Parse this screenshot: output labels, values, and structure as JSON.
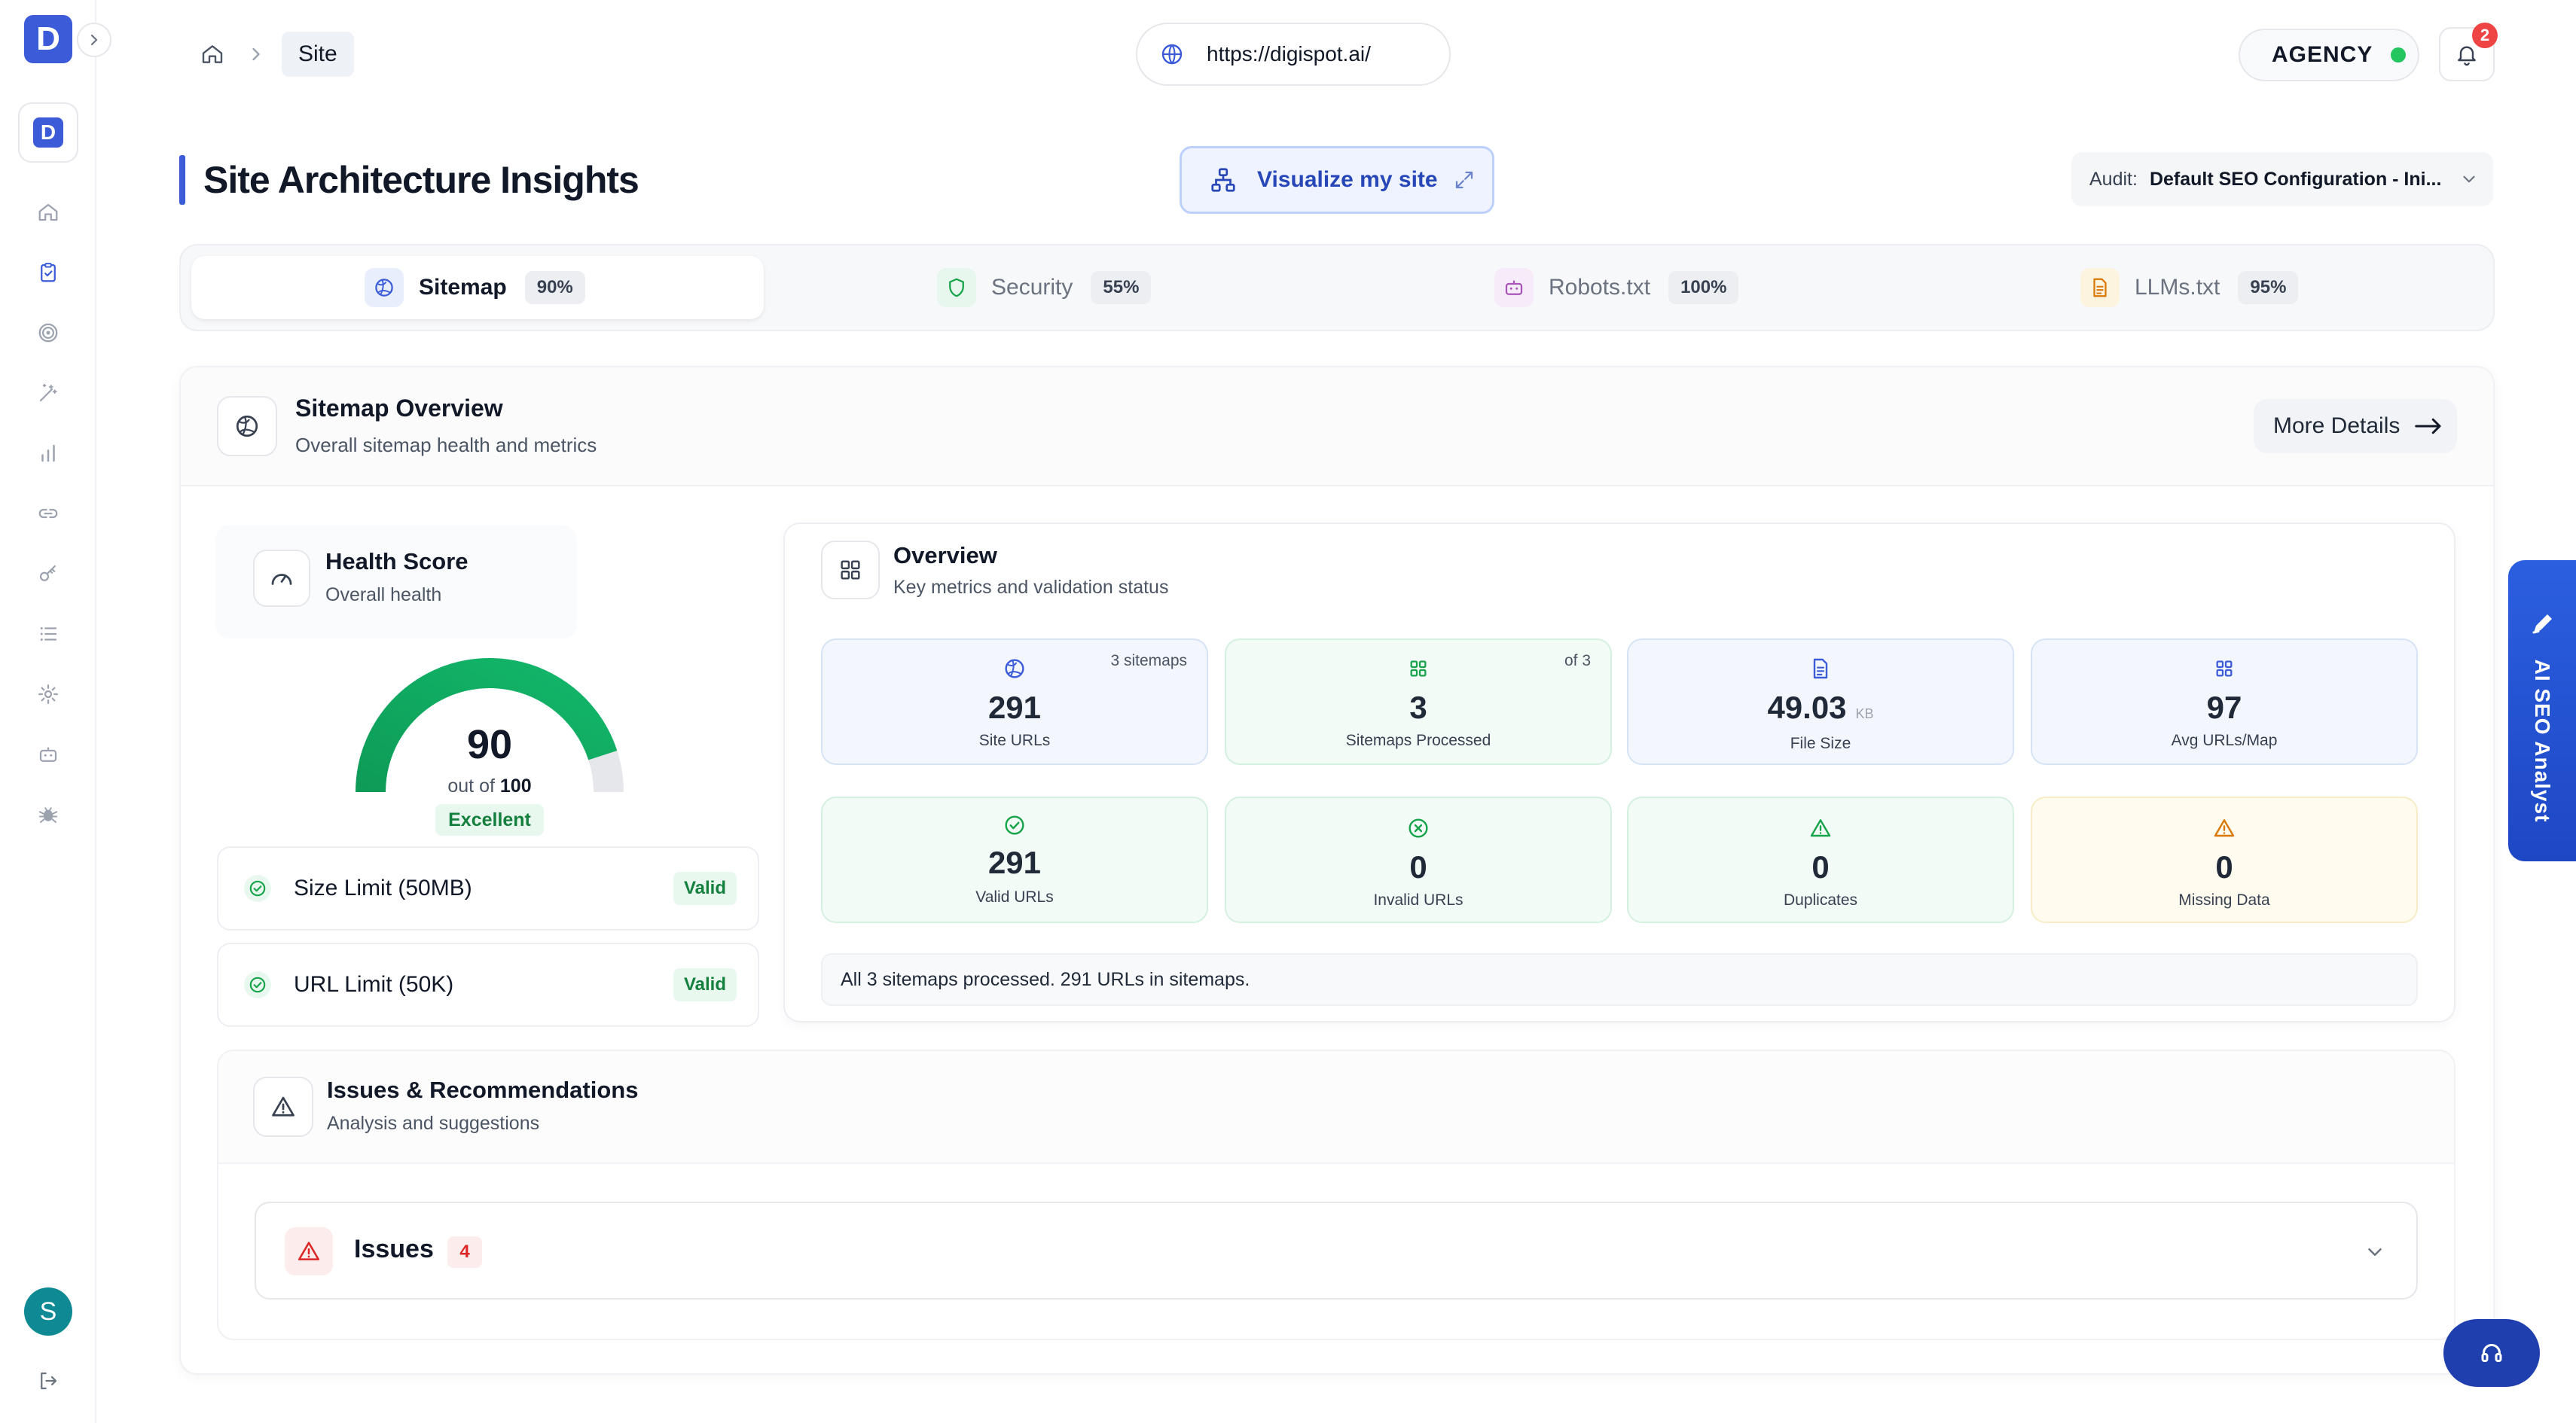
{
  "sidebar": {
    "logo_letter": "D",
    "workspace_letter": "D",
    "avatar_initial": "S",
    "icons": [
      "home-icon",
      "clipboard-check-icon",
      "target-icon",
      "magic-wand-icon",
      "bar-chart-icon",
      "link-icon",
      "key-icon",
      "list-icon",
      "gear-icon",
      "robot-icon",
      "bug-icon"
    ]
  },
  "topbar": {
    "breadcrumb_current": "Site",
    "url": "https://digispot.ai/",
    "plan_label": "AGENCY",
    "notifications_count": "2"
  },
  "header": {
    "title": "Site Architecture Insights",
    "visualize_label": "Visualize my site",
    "audit_label": "Audit:",
    "audit_value": "Default SEO Configuration - Ini..."
  },
  "tabs": [
    {
      "label": "Sitemap",
      "pct": "90%",
      "active": true
    },
    {
      "label": "Security",
      "pct": "55%",
      "active": false
    },
    {
      "label": "Robots.txt",
      "pct": "100%",
      "active": false
    },
    {
      "label": "LLMs.txt",
      "pct": "95%",
      "active": false
    }
  ],
  "sitemap_overview": {
    "title": "Sitemap Overview",
    "subtitle": "Overall sitemap health and metrics",
    "more_label": "More Details"
  },
  "health": {
    "title": "Health Score",
    "subtitle": "Overall health",
    "score": "90",
    "score_value": 90,
    "out_of_prefix": "out of",
    "out_of": "100",
    "rating": "Excellent",
    "accent": "#10a35e"
  },
  "checks": [
    {
      "label": "Size Limit (50MB)",
      "status": "Valid"
    },
    {
      "label": "URL Limit (50K)",
      "status": "Valid"
    }
  ],
  "overview": {
    "title": "Overview",
    "subtitle": "Key metrics and validation status",
    "stats": [
      {
        "value": "291",
        "caption": "Site URLs",
        "corner": "3 sitemaps",
        "unit": ""
      },
      {
        "value": "3",
        "caption": "Sitemaps Processed",
        "corner": "of 3",
        "unit": ""
      },
      {
        "value": "49.03",
        "caption": "File Size",
        "corner": "",
        "unit": "KB"
      },
      {
        "value": "97",
        "caption": "Avg URLs/Map",
        "corner": "",
        "unit": ""
      },
      {
        "value": "291",
        "caption": "Valid URLs",
        "corner": "",
        "unit": ""
      },
      {
        "value": "0",
        "caption": "Invalid URLs",
        "corner": "",
        "unit": ""
      },
      {
        "value": "0",
        "caption": "Duplicates",
        "corner": "",
        "unit": ""
      },
      {
        "value": "0",
        "caption": "Missing Data",
        "corner": "",
        "unit": ""
      }
    ],
    "summary": "All 3 sitemaps processed. 291 URLs in sitemaps."
  },
  "issues": {
    "title": "Issues & Recommendations",
    "subtitle": "Analysis and suggestions",
    "row_label": "Issues",
    "row_count": "4"
  },
  "ai_tab": {
    "label": "AI SEO Analyst"
  }
}
